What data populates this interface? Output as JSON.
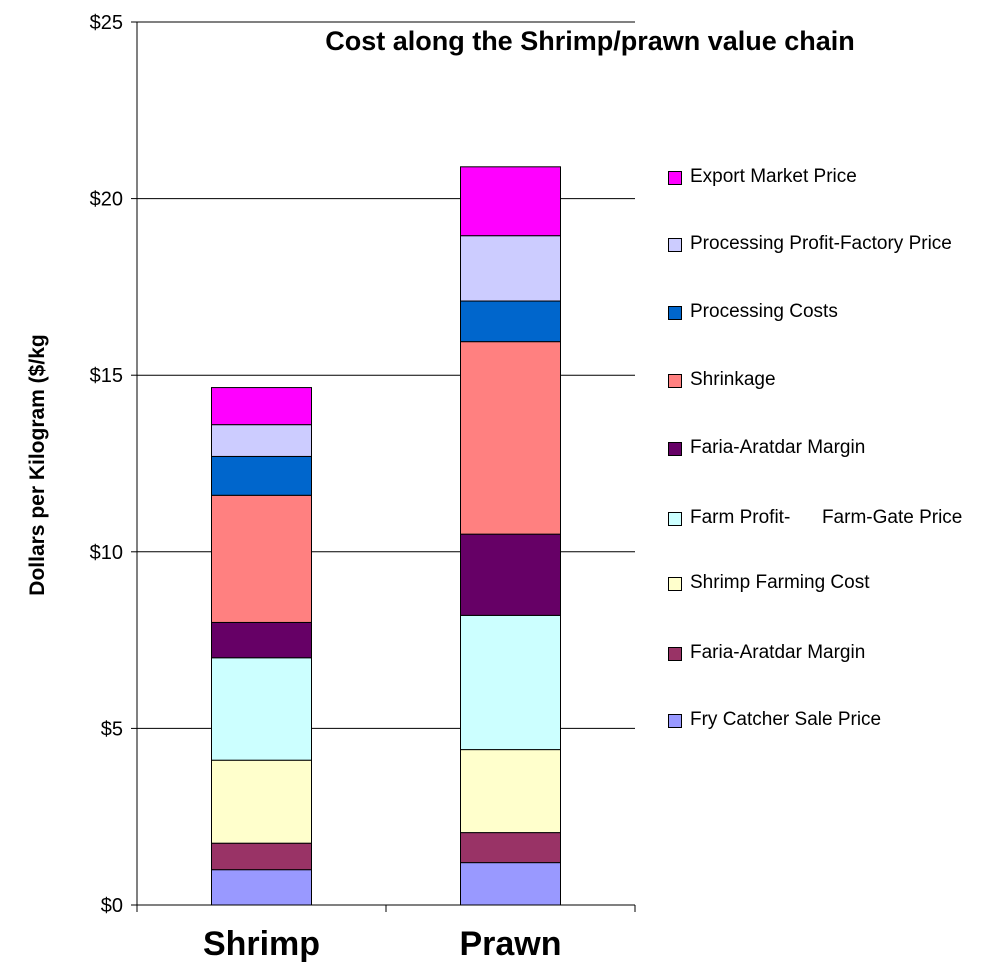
{
  "chart_data": {
    "type": "stacked_bar",
    "title": "Cost along the Shrimp/prawn value chain",
    "y_label": "Dollars per Kilogram ($/kg",
    "categories": [
      "Shrimp",
      "Prawn"
    ],
    "ylim": [
      0,
      25
    ],
    "yticks": [
      {
        "value": 0,
        "label": "$0"
      },
      {
        "value": 5,
        "label": "$5"
      },
      {
        "value": 10,
        "label": "$10"
      },
      {
        "value": 15,
        "label": "$15"
      },
      {
        "value": 20,
        "label": "$20"
      },
      {
        "value": 25,
        "label": "$25"
      }
    ],
    "grid": true,
    "legend": "right",
    "series": [
      {
        "name": "Fry Catcher Sale Price",
        "color": "#9999ff",
        "values": [
          1.0,
          1.2
        ]
      },
      {
        "name": "Faria-Aratdar Margin",
        "color": "#993366",
        "values": [
          0.75,
          0.85
        ]
      },
      {
        "name": "Shrimp Farming Cost",
        "color": "#ffffcc",
        "values": [
          2.35,
          2.35
        ]
      },
      {
        "name": "Farm Profit-      Farm-Gate Price",
        "color": "#ccffff",
        "values": [
          2.9,
          3.8
        ]
      },
      {
        "name": "Faria-Aratdar Margin",
        "color": "#660066",
        "values": [
          1.0,
          2.3
        ]
      },
      {
        "name": "Shrinkage",
        "color": "#ff8080",
        "values": [
          3.6,
          5.45
        ]
      },
      {
        "name": "Processing Costs",
        "color": "#0066cc",
        "values": [
          1.1,
          1.15
        ]
      },
      {
        "name": "Processing Profit-Factory Price",
        "color": "#ccccff",
        "values": [
          0.9,
          1.85
        ]
      },
      {
        "name": "Export Market Price",
        "color": "#ff00ff",
        "values": [
          1.05,
          1.95
        ]
      }
    ]
  }
}
